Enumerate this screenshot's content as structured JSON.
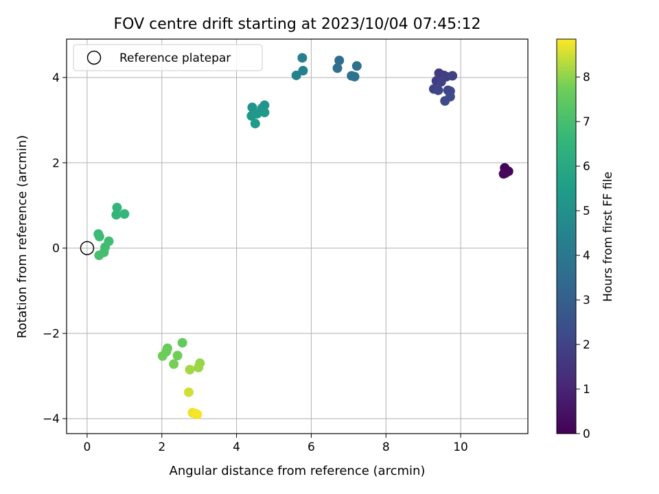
{
  "chart_data": {
    "type": "scatter",
    "title": "FOV centre drift starting at 2023/10/04 07:45:12",
    "xlabel": "Angular distance from reference (arcmin)",
    "ylabel": "Rotation from reference (arcmin)",
    "xlim": [
      -0.55,
      11.8
    ],
    "ylim": [
      -4.35,
      4.9
    ],
    "xticks": [
      0,
      2,
      4,
      6,
      8,
      10
    ],
    "yticks": [
      -4,
      -2,
      0,
      2,
      4
    ],
    "grid": true,
    "legend": {
      "position": "top-left",
      "entries": [
        "Reference platepar"
      ]
    },
    "reference_point": {
      "x": 0,
      "y": 0,
      "label": "Reference platepar"
    },
    "colorbar": {
      "label": "Hours from first FF file",
      "range": [
        0,
        8.85
      ],
      "ticks": [
        0,
        1,
        2,
        3,
        4,
        5,
        6,
        7,
        8
      ],
      "colormap": "viridis"
    },
    "points": [
      {
        "x": 11.18,
        "y": 1.88,
        "h": 0.05
      },
      {
        "x": 11.28,
        "y": 1.8,
        "h": 0.1
      },
      {
        "x": 11.15,
        "y": 1.74,
        "h": 0.15
      },
      {
        "x": 11.2,
        "y": 1.76,
        "h": 0.2
      },
      {
        "x": 9.42,
        "y": 4.1,
        "h": 1.7
      },
      {
        "x": 9.55,
        "y": 4.05,
        "h": 1.75
      },
      {
        "x": 9.35,
        "y": 3.92,
        "h": 1.8
      },
      {
        "x": 9.62,
        "y": 4.02,
        "h": 1.85
      },
      {
        "x": 9.78,
        "y": 4.04,
        "h": 1.9
      },
      {
        "x": 9.48,
        "y": 3.9,
        "h": 1.95
      },
      {
        "x": 9.28,
        "y": 3.73,
        "h": 2.0
      },
      {
        "x": 9.4,
        "y": 3.7,
        "h": 2.05
      },
      {
        "x": 9.66,
        "y": 3.7,
        "h": 2.1
      },
      {
        "x": 9.72,
        "y": 3.68,
        "h": 2.15
      },
      {
        "x": 9.72,
        "y": 3.55,
        "h": 2.2
      },
      {
        "x": 9.58,
        "y": 3.45,
        "h": 2.25
      },
      {
        "x": 6.75,
        "y": 4.4,
        "h": 3.55
      },
      {
        "x": 6.7,
        "y": 4.22,
        "h": 3.6
      },
      {
        "x": 7.22,
        "y": 4.27,
        "h": 3.65
      },
      {
        "x": 7.08,
        "y": 4.04,
        "h": 3.7
      },
      {
        "x": 7.16,
        "y": 4.02,
        "h": 3.75
      },
      {
        "x": 5.76,
        "y": 4.46,
        "h": 4.35
      },
      {
        "x": 5.78,
        "y": 4.16,
        "h": 4.4
      },
      {
        "x": 5.6,
        "y": 4.05,
        "h": 4.45
      },
      {
        "x": 4.42,
        "y": 3.3,
        "h": 5.1
      },
      {
        "x": 4.75,
        "y": 3.35,
        "h": 5.15
      },
      {
        "x": 4.68,
        "y": 3.28,
        "h": 5.2
      },
      {
        "x": 4.4,
        "y": 3.1,
        "h": 5.25
      },
      {
        "x": 4.55,
        "y": 3.15,
        "h": 5.3
      },
      {
        "x": 4.75,
        "y": 3.18,
        "h": 5.35
      },
      {
        "x": 4.5,
        "y": 2.92,
        "h": 5.4
      },
      {
        "x": 0.8,
        "y": 0.95,
        "h": 6.5
      },
      {
        "x": 0.78,
        "y": 0.78,
        "h": 6.55
      },
      {
        "x": 1.0,
        "y": 0.8,
        "h": 6.6
      },
      {
        "x": 0.3,
        "y": 0.33,
        "h": 6.75
      },
      {
        "x": 0.33,
        "y": 0.27,
        "h": 6.8
      },
      {
        "x": 0.58,
        "y": 0.16,
        "h": 6.85
      },
      {
        "x": 0.48,
        "y": 0.02,
        "h": 6.9
      },
      {
        "x": 0.45,
        "y": -0.1,
        "h": 6.95
      },
      {
        "x": 0.32,
        "y": -0.17,
        "h": 7.0
      },
      {
        "x": 2.55,
        "y": -2.22,
        "h": 7.55
      },
      {
        "x": 2.15,
        "y": -2.35,
        "h": 7.6
      },
      {
        "x": 2.12,
        "y": -2.43,
        "h": 7.65
      },
      {
        "x": 2.02,
        "y": -2.53,
        "h": 7.7
      },
      {
        "x": 2.42,
        "y": -2.52,
        "h": 7.75
      },
      {
        "x": 2.32,
        "y": -2.72,
        "h": 7.8
      },
      {
        "x": 3.02,
        "y": -2.7,
        "h": 8.05
      },
      {
        "x": 2.98,
        "y": -2.8,
        "h": 8.1
      },
      {
        "x": 2.75,
        "y": -2.85,
        "h": 8.15
      },
      {
        "x": 2.72,
        "y": -3.38,
        "h": 8.5
      },
      {
        "x": 2.82,
        "y": -3.86,
        "h": 8.7
      },
      {
        "x": 2.9,
        "y": -3.88,
        "h": 8.75
      },
      {
        "x": 2.95,
        "y": -3.9,
        "h": 8.8
      }
    ]
  }
}
